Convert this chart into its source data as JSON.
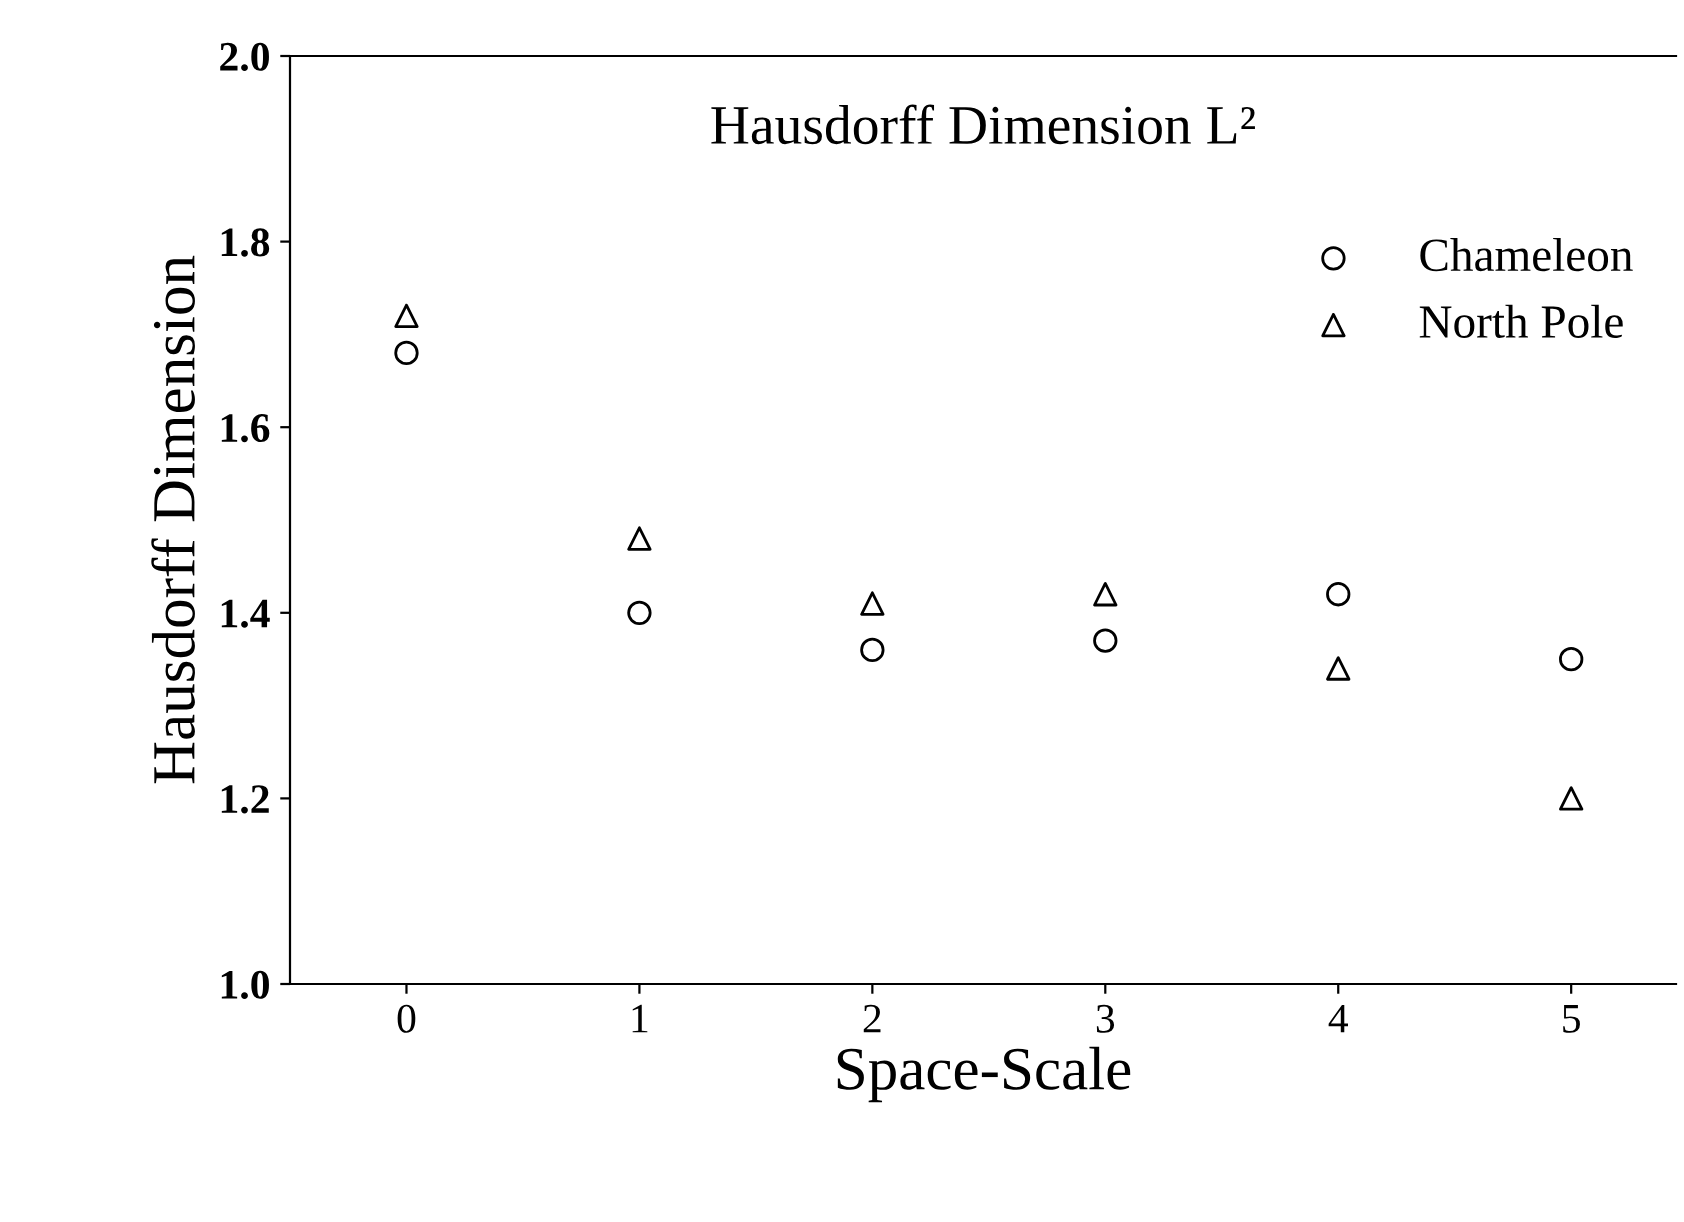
{
  "chart_data": {
    "type": "scatter",
    "title": "Hausdorff Dimension L²",
    "xlabel": "Space-Scale",
    "ylabel": "Hausdorff Dimension",
    "x": [
      0,
      1,
      2,
      3,
      4,
      5
    ],
    "series": [
      {
        "name": "Chameleon",
        "color": "#000000",
        "marker": "circle",
        "values": [
          1.68,
          1.4,
          1.36,
          1.37,
          1.42,
          1.35
        ]
      },
      {
        "name": "North Pole",
        "color": "#000000",
        "marker": "triangle",
        "values": [
          1.72,
          1.48,
          1.41,
          1.42,
          1.34,
          1.2
        ]
      }
    ],
    "xlim": [
      -0.5,
      5.45
    ],
    "xticks": [
      0,
      1,
      2,
      3,
      4,
      5
    ],
    "ylim": [
      1.0,
      2.0
    ],
    "yticks": [
      {
        "value": 1.0,
        "label": "1.0"
      },
      1.2,
      1.4,
      1.6,
      1.8,
      {
        "value": 2.0,
        "label": "2.0"
      }
    ],
    "grid": false,
    "legend": "top right"
  }
}
